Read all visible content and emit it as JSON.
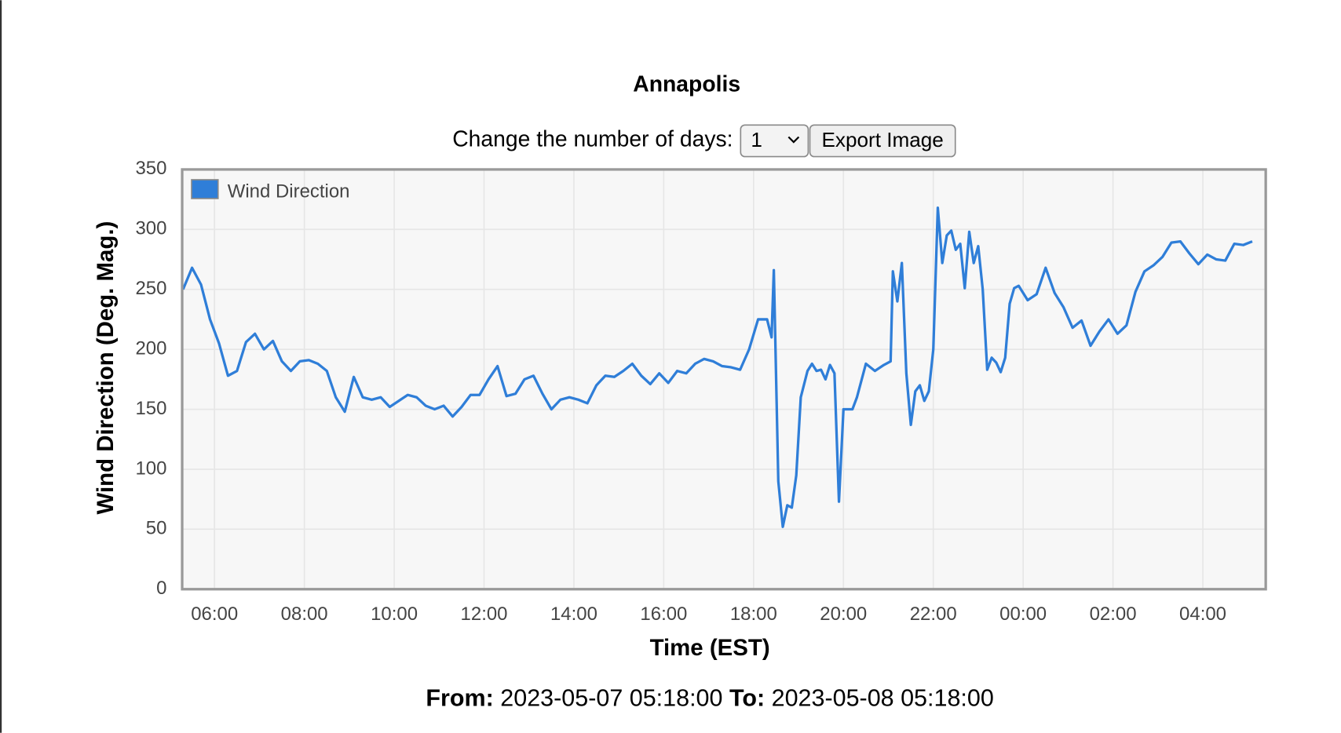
{
  "controls": {
    "label": "Change the number of days:",
    "days_selected": "1",
    "button": "Export Image"
  },
  "chart_data": {
    "type": "line",
    "title": "Annapolis",
    "x_label": "Time (EST)",
    "y_label": "Wind Direction (Deg. Mag.)",
    "xlim": [
      5.28,
      29.4
    ],
    "xticks": [
      {
        "value": 6,
        "label": "06:00"
      },
      {
        "value": 8,
        "label": "08:00"
      },
      {
        "value": 10,
        "label": "10:00"
      },
      {
        "value": 12,
        "label": "12:00"
      },
      {
        "value": 14,
        "label": "14:00"
      },
      {
        "value": 16,
        "label": "16:00"
      },
      {
        "value": 18,
        "label": "18:00"
      },
      {
        "value": 20,
        "label": "20:00"
      },
      {
        "value": 22,
        "label": "22:00"
      },
      {
        "value": 24,
        "label": "00:00"
      },
      {
        "value": 26,
        "label": "02:00"
      },
      {
        "value": 28,
        "label": "04:00"
      }
    ],
    "ylim": [
      0,
      350
    ],
    "yticks": [
      0,
      50,
      100,
      150,
      200,
      250,
      300,
      350
    ],
    "grid": true,
    "legend": "top-left",
    "x": [
      5.3,
      5.5,
      5.7,
      5.9,
      6.1,
      6.3,
      6.5,
      6.7,
      6.9,
      7.1,
      7.3,
      7.5,
      7.7,
      7.9,
      8.1,
      8.3,
      8.5,
      8.7,
      8.9,
      9.1,
      9.3,
      9.5,
      9.7,
      9.9,
      10.1,
      10.3,
      10.5,
      10.7,
      10.9,
      11.1,
      11.3,
      11.5,
      11.7,
      11.9,
      12.1,
      12.3,
      12.5,
      12.7,
      12.9,
      13.1,
      13.3,
      13.5,
      13.7,
      13.9,
      14.1,
      14.3,
      14.5,
      14.7,
      14.9,
      15.1,
      15.3,
      15.5,
      15.7,
      15.9,
      16.1,
      16.3,
      16.5,
      16.7,
      16.9,
      17.1,
      17.3,
      17.5,
      17.7,
      17.9,
      18.1,
      18.3,
      18.4,
      18.45,
      18.55,
      18.65,
      18.75,
      18.85,
      18.95,
      19.05,
      19.2,
      19.3,
      19.4,
      19.5,
      19.6,
      19.7,
      19.8,
      19.9,
      20.0,
      20.1,
      20.2,
      20.3,
      20.5,
      20.7,
      20.9,
      21.05,
      21.1,
      21.2,
      21.3,
      21.4,
      21.5,
      21.6,
      21.7,
      21.8,
      21.9,
      22.0,
      22.1,
      22.2,
      22.3,
      22.4,
      22.5,
      22.6,
      22.7,
      22.8,
      22.9,
      23.0,
      23.1,
      23.2,
      23.3,
      23.4,
      23.5,
      23.6,
      23.7,
      23.8,
      23.9,
      24.1,
      24.3,
      24.5,
      24.7,
      24.9,
      25.1,
      25.3,
      25.5,
      25.7,
      25.9,
      26.1,
      26.3,
      26.5,
      26.7,
      26.9,
      27.1,
      27.3,
      27.5,
      27.7,
      27.9,
      28.1,
      28.3,
      28.5,
      28.7,
      28.9,
      29.1
    ],
    "series": [
      {
        "name": "Wind Direction",
        "color": "#2f7ed8",
        "values": [
          250,
          268,
          254,
          225,
          205,
          178,
          182,
          206,
          213,
          200,
          207,
          190,
          182,
          190,
          191,
          188,
          182,
          160,
          148,
          177,
          160,
          158,
          160,
          152,
          157,
          162,
          160,
          153,
          150,
          153,
          144,
          152,
          162,
          162,
          175,
          186,
          161,
          163,
          175,
          178,
          163,
          150,
          158,
          160,
          158,
          155,
          170,
          178,
          177,
          182,
          188,
          178,
          171,
          180,
          172,
          182,
          180,
          188,
          192,
          190,
          186,
          185,
          183,
          200,
          225,
          225,
          210,
          266,
          90,
          52,
          70,
          68,
          95,
          160,
          182,
          188,
          182,
          183,
          175,
          187,
          180,
          73,
          150,
          150,
          150,
          160,
          188,
          182,
          187,
          190,
          265,
          240,
          272,
          180,
          137,
          165,
          170,
          157,
          165,
          200,
          318,
          272,
          295,
          299,
          283,
          288,
          251,
          298,
          272,
          286,
          250,
          183,
          193,
          189,
          181,
          193,
          238,
          251,
          253,
          241,
          246,
          268,
          247,
          235,
          218,
          224,
          203,
          215,
          225,
          213,
          220,
          248,
          265,
          270,
          277,
          289,
          290,
          280,
          271,
          279,
          275,
          274,
          288,
          287,
          290
        ]
      }
    ]
  },
  "footer": {
    "from_label": "From:",
    "from": "2023-05-07 05:18:00",
    "to_label": "To:",
    "to": "2023-05-08 05:18:00"
  }
}
